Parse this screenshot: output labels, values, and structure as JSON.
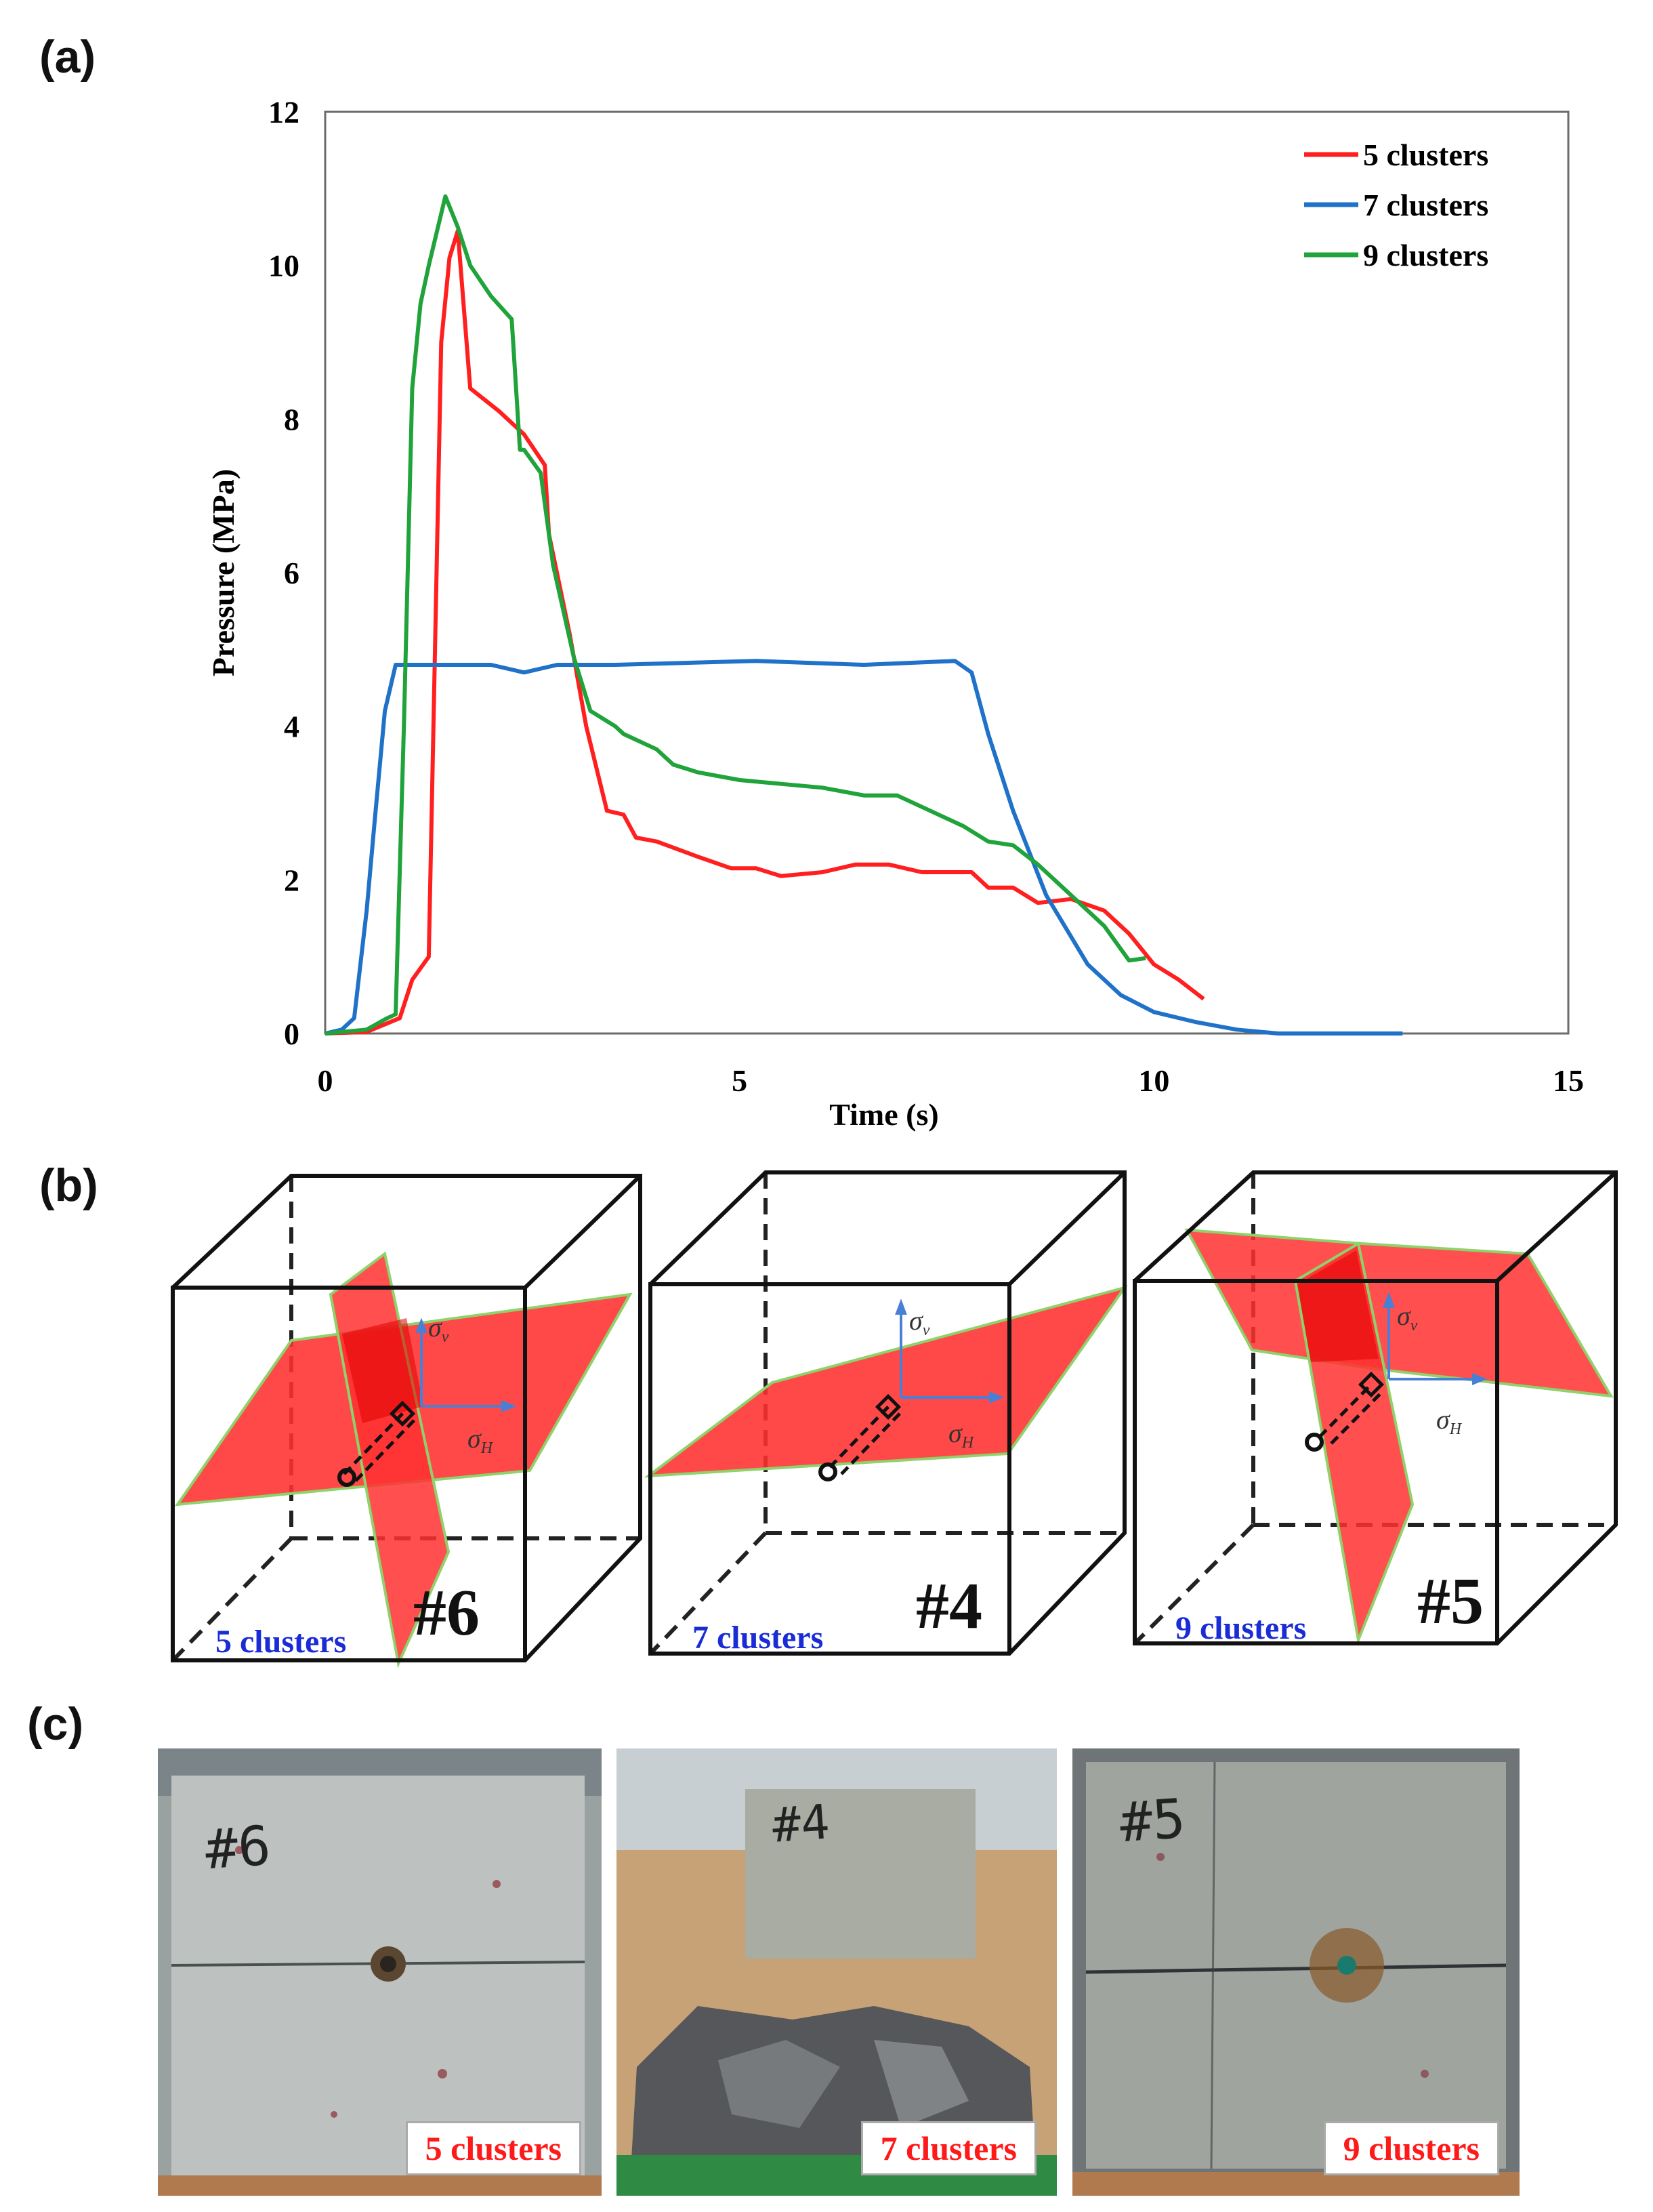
{
  "panel_labels": {
    "a": "(a)",
    "b": "(b)",
    "c": "(c)"
  },
  "chart_data": {
    "type": "line",
    "xlabel": "Time (s)",
    "ylabel": "Pressure (MPa)",
    "xlim": [
      0,
      15
    ],
    "ylim": [
      0,
      12
    ],
    "xticks": [
      0,
      5,
      10,
      15
    ],
    "yticks": [
      0,
      2,
      4,
      6,
      8,
      10,
      12
    ],
    "legend_position": "top-right",
    "series": [
      {
        "name": "5 clusters",
        "color": "#ff1f1f",
        "x": [
          0,
          0.5,
          0.9,
          1.05,
          1.25,
          1.4,
          1.5,
          1.6,
          1.75,
          2.1,
          2.4,
          2.65,
          2.7,
          2.95,
          3.15,
          3.4,
          3.6,
          3.75,
          4.0,
          4.5,
          4.9,
          5.2,
          5.5,
          6.0,
          6.4,
          6.8,
          7.2,
          7.6,
          7.8,
          8.0,
          8.3,
          8.6,
          9.0,
          9.4,
          9.7,
          10.0,
          10.3,
          10.6
        ],
        "y": [
          0,
          0.02,
          0.2,
          0.7,
          1.0,
          9.0,
          10.1,
          10.45,
          8.4,
          8.1,
          7.8,
          7.4,
          6.5,
          5.2,
          4.0,
          2.9,
          2.85,
          2.55,
          2.5,
          2.3,
          2.15,
          2.15,
          2.05,
          2.1,
          2.2,
          2.2,
          2.1,
          2.1,
          2.1,
          1.9,
          1.9,
          1.7,
          1.75,
          1.6,
          1.3,
          0.9,
          0.7,
          0.45
        ]
      },
      {
        "name": "7 clusters",
        "color": "#1f72c8",
        "x": [
          0,
          0.2,
          0.35,
          0.5,
          0.6,
          0.72,
          0.85,
          1.0,
          2.0,
          2.4,
          2.8,
          3.5,
          5.2,
          6.5,
          7.6,
          7.8,
          8.0,
          8.3,
          8.7,
          9.2,
          9.6,
          10.0,
          10.5,
          11.0,
          11.5,
          12.2,
          13.0
        ],
        "y": [
          0,
          0.05,
          0.2,
          1.6,
          2.8,
          4.2,
          4.8,
          4.8,
          4.8,
          4.7,
          4.8,
          4.8,
          4.85,
          4.8,
          4.85,
          4.7,
          3.9,
          2.9,
          1.8,
          0.9,
          0.5,
          0.28,
          0.15,
          0.05,
          0.0,
          0.0,
          0.0
        ]
      },
      {
        "name": "9 clusters",
        "color": "#1fa33a",
        "x": [
          0,
          0.5,
          0.75,
          0.85,
          0.95,
          1.05,
          1.15,
          1.25,
          1.45,
          1.6,
          1.75,
          2.0,
          2.25,
          2.35,
          2.4,
          2.6,
          2.75,
          3.0,
          3.2,
          3.35,
          3.5,
          3.6,
          4.0,
          4.2,
          4.5,
          5.0,
          5.5,
          6.0,
          6.5,
          6.9,
          7.3,
          7.7,
          8.0,
          8.3,
          8.6,
          9.0,
          9.4,
          9.7,
          9.9
        ],
        "y": [
          0,
          0.05,
          0.2,
          0.25,
          4.0,
          8.4,
          9.5,
          10.0,
          10.9,
          10.5,
          10.0,
          9.6,
          9.3,
          7.6,
          7.6,
          7.3,
          6.1,
          4.9,
          4.2,
          4.1,
          4.0,
          3.9,
          3.7,
          3.5,
          3.4,
          3.3,
          3.25,
          3.2,
          3.1,
          3.1,
          2.9,
          2.7,
          2.5,
          2.45,
          2.2,
          1.8,
          1.4,
          0.95,
          0.98
        ]
      }
    ]
  },
  "diagrams": [
    {
      "caption": "5 clusters",
      "id": "#6",
      "sigma_v": "σ",
      "sigma_v_sub": "v",
      "sigma_h": "σ",
      "sigma_h_sub": "H"
    },
    {
      "caption": "7 clusters",
      "id": "#4",
      "sigma_v": "σ",
      "sigma_v_sub": "v",
      "sigma_h": "σ",
      "sigma_h_sub": "H"
    },
    {
      "caption": "9 clusters",
      "id": "#5",
      "sigma_v": "σ",
      "sigma_v_sub": "v",
      "sigma_h": "σ",
      "sigma_h_sub": "H"
    }
  ],
  "photos": [
    {
      "label": "5 clusters",
      "handwritten": "#6"
    },
    {
      "label": "7 clusters",
      "handwritten": "#4"
    },
    {
      "label": "9 clusters",
      "handwritten": "#5"
    }
  ],
  "colors": {
    "fracture_fill": "#ff3030",
    "caption_blue": "#1a2cd6",
    "photo_label": "#ff1a1a"
  }
}
